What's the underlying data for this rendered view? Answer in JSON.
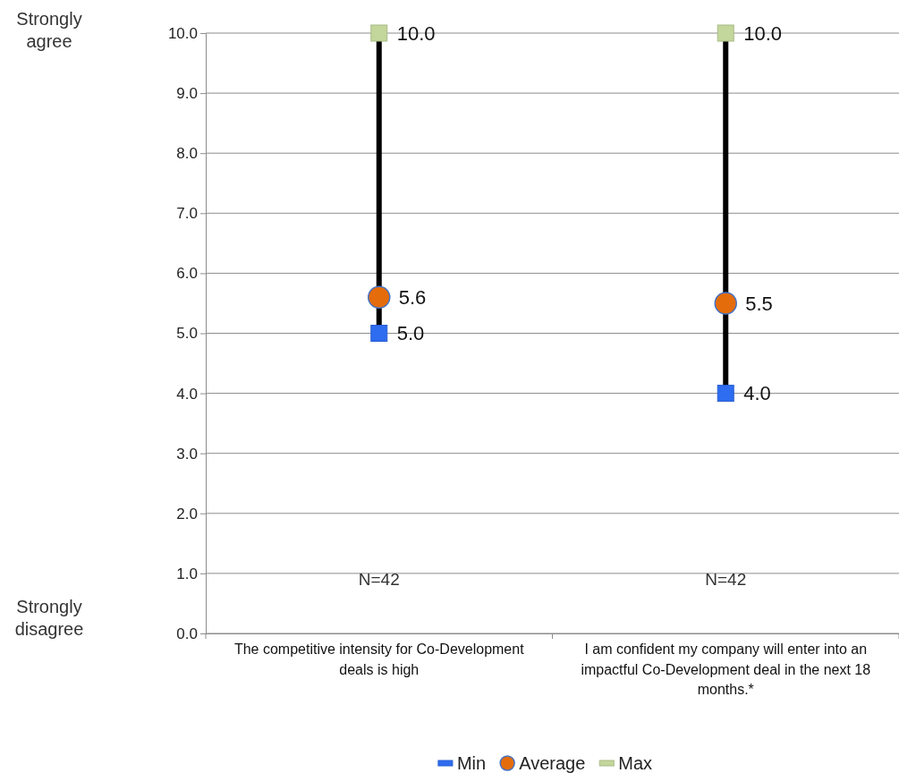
{
  "chart_data": {
    "type": "scatter",
    "categories": [
      "The competitive intensity for Co-Development deals is high",
      "I am confident my company will enter into an impactful Co-Development deal in the next 18 months.*"
    ],
    "series": [
      {
        "name": "Min",
        "color": "#2e6cf0",
        "marker": "square",
        "values": [
          5,
          4
        ],
        "value_labels": [
          "5.0",
          "4.0"
        ]
      },
      {
        "name": "Average",
        "color": "#e46c0a",
        "marker": "circle",
        "values": [
          5.6,
          5.5
        ],
        "value_labels": [
          "5.6",
          "5.5"
        ]
      },
      {
        "name": "Max",
        "color": "#c3d69b",
        "marker": "square",
        "values": [
          10,
          10
        ],
        "value_labels": [
          "10.0",
          "10.0"
        ]
      }
    ],
    "ylim": [
      0,
      10
    ],
    "yticks": [
      {
        "value": 0,
        "label": "0.0"
      },
      {
        "value": 1,
        "label": "1.0"
      },
      {
        "value": 2,
        "label": "2.0"
      },
      {
        "value": 3,
        "label": "3.0"
      },
      {
        "value": 4,
        "label": "4.0"
      },
      {
        "value": 5,
        "label": "5.0"
      },
      {
        "value": 6,
        "label": "6.0"
      },
      {
        "value": 7,
        "label": "7.0"
      },
      {
        "value": 8,
        "label": "8.0"
      },
      {
        "value": 9,
        "label": "9.0"
      },
      {
        "value": 10,
        "label": "10.0"
      }
    ],
    "grid": "y",
    "legend": "bottom",
    "annotations": [
      "Strongly agree",
      "Strongly disagree",
      "N=42",
      "N=42"
    ]
  }
}
